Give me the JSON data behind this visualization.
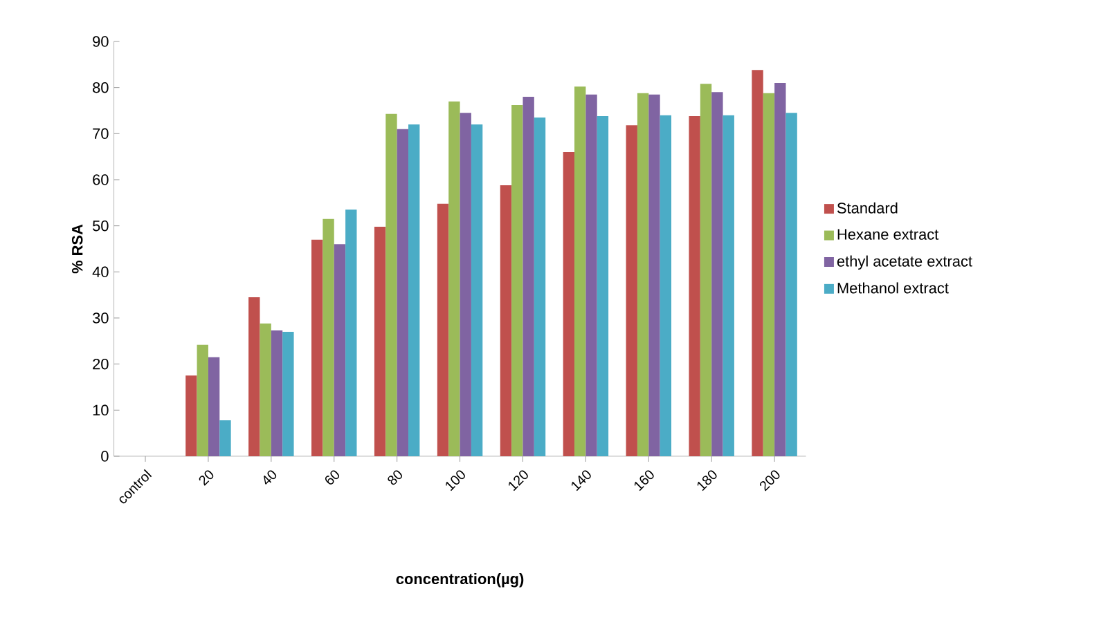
{
  "chart_data": {
    "type": "bar",
    "xlabel": "concentration(µg)",
    "ylabel": "% RSA",
    "categories": [
      "control",
      "20",
      "40",
      "60",
      "80",
      "100",
      "120",
      "140",
      "160",
      "180",
      "200"
    ],
    "series": [
      {
        "name": "Standard",
        "color": "#c0504d",
        "values": [
          0,
          17.5,
          34.5,
          47,
          49.8,
          54.8,
          58.8,
          66,
          71.8,
          73.8,
          83.8
        ]
      },
      {
        "name": "Hexane extract",
        "color": "#9bbb59",
        "values": [
          0,
          24.2,
          28.8,
          51.5,
          74.3,
          77,
          76.2,
          80.2,
          78.8,
          80.8,
          78.8
        ]
      },
      {
        "name": "ethyl acetate extract",
        "color": "#8064a2",
        "values": [
          0,
          21.5,
          27.3,
          46,
          71,
          74.5,
          78,
          78.5,
          78.5,
          79,
          81
        ]
      },
      {
        "name": "Methanol extract",
        "color": "#4bacc6",
        "values": [
          0,
          7.8,
          27,
          53.5,
          72,
          72,
          73.5,
          73.8,
          74,
          74,
          74.5
        ]
      }
    ],
    "ylim": [
      0,
      90
    ],
    "yticks": [
      0,
      10,
      20,
      30,
      40,
      50,
      60,
      70,
      80,
      90
    ],
    "grid": false,
    "legend": "right"
  }
}
